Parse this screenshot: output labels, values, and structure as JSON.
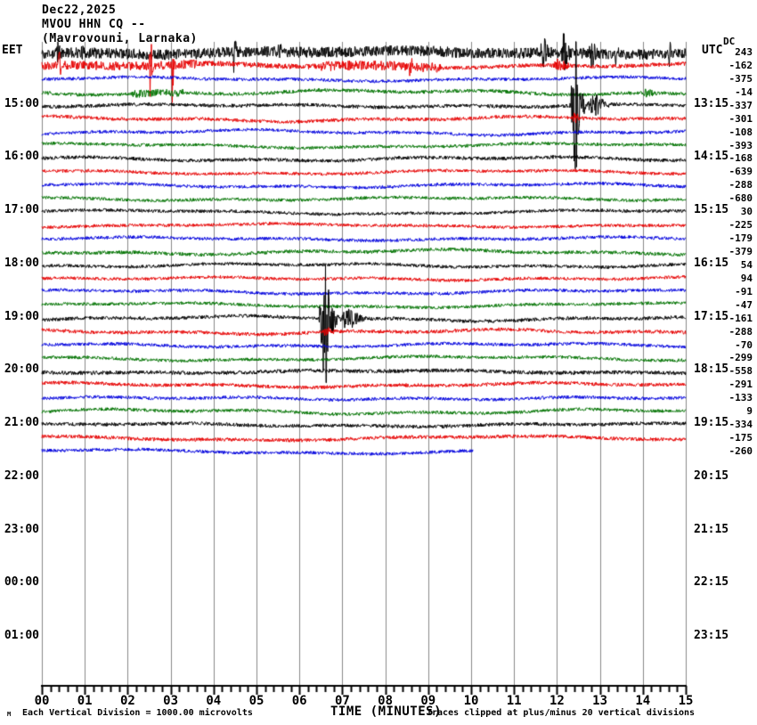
{
  "header": {
    "date": "Dec22,2025",
    "station": "MVOU HHN CQ --",
    "location": "(Mavrovouni, Larnaka)"
  },
  "axes": {
    "left_label": "EET",
    "right_label": "UTC",
    "dc_label": "DC",
    "x_title": "TIME (MINUTES)",
    "left_ticks": [
      "15:00",
      "16:00",
      "17:00",
      "18:00",
      "19:00",
      "20:00",
      "21:00",
      "22:00",
      "23:00",
      "00:00",
      "01:00"
    ],
    "right_ticks": [
      "13:15",
      "14:15",
      "15:15",
      "16:15",
      "17:15",
      "18:15",
      "19:15",
      "20:15",
      "21:15",
      "22:15",
      "23:15"
    ],
    "x_ticks": [
      "00",
      "01",
      "02",
      "03",
      "04",
      "05",
      "06",
      "07",
      "08",
      "09",
      "10",
      "11",
      "12",
      "13",
      "14",
      "15"
    ]
  },
  "footer": {
    "mark": "M",
    "left": "Each Vertical Division = 1000.00 microvolts",
    "right": "Traces clipped at plus/minus 20 vertical divisions"
  },
  "chart_data": {
    "type": "line",
    "subtype": "helicorder-seismogram",
    "x_range": [
      0,
      15
    ],
    "minutes_per_row": 15,
    "grid": "vertical-minute-lines",
    "grid_color": "#888888",
    "background": "#ffffff",
    "palette": {
      "black": "#000000",
      "red": "#e60000",
      "blue": "#0000dd",
      "green": "#007300"
    },
    "color_cycle": [
      "black",
      "red",
      "blue",
      "green"
    ],
    "first_row_start_eet": "14:00",
    "clip_divisions": 20,
    "microvolts_per_division": 1000.0,
    "rows": [
      {
        "c": "black",
        "dc": 243,
        "a": 6,
        "ev": [
          {
            "t": 0.35,
            "d": 0.1,
            "a": 14
          },
          {
            "t": 0.9,
            "d": 0.08,
            "a": 12
          },
          {
            "t": 4.45,
            "d": 0.1,
            "a": 26
          },
          {
            "t": 5.5,
            "d": 0.1,
            "a": 14
          },
          {
            "t": 11.6,
            "d": 0.3,
            "a": 16
          },
          {
            "t": 12.1,
            "d": 0.25,
            "a": 22
          },
          {
            "t": 12.75,
            "d": 0.2,
            "a": 14
          },
          {
            "t": 13.35,
            "d": 0.15,
            "a": 12
          },
          {
            "t": 14.6,
            "d": 0.1,
            "a": 12
          }
        ]
      },
      {
        "c": "red",
        "dc": -162,
        "a": 5,
        "amps": [
          [
            0,
            5
          ],
          [
            3.6,
            3
          ],
          [
            6.5,
            5.5
          ],
          [
            9.3,
            2.2
          ]
        ],
        "ev": [
          {
            "t": 0.38,
            "d": 0.07,
            "a": 50
          },
          {
            "t": 2.5,
            "d": 0.1,
            "a": 58
          },
          {
            "t": 3.02,
            "d": 0.08,
            "a": 46
          },
          {
            "t": 8.55,
            "d": 0.1,
            "a": 20
          },
          {
            "t": 11.9,
            "d": 0.5,
            "a": 6
          }
        ]
      },
      {
        "c": "blue",
        "dc": -375,
        "a": 1.8
      },
      {
        "c": "green",
        "dc": -14,
        "a": 2,
        "amps": [
          [
            0,
            2
          ],
          [
            2.1,
            4.5
          ],
          [
            3.3,
            2
          ]
        ],
        "ev": [
          {
            "t": 14.0,
            "d": 0.4,
            "a": 4
          }
        ]
      },
      {
        "c": "black",
        "dc": -337,
        "a": 2,
        "ev": [
          {
            "t": 12.3,
            "d": 0.4,
            "a": 70
          },
          {
            "t": 12.42,
            "d": 0.06,
            "a": 85
          },
          {
            "t": 12.7,
            "d": 0.6,
            "a": 14
          }
        ]
      },
      {
        "c": "red",
        "dc": -301,
        "a": 2,
        "ev": [
          {
            "t": 12.35,
            "d": 0.3,
            "a": 5
          }
        ]
      },
      {
        "c": "blue",
        "dc": -108,
        "a": 1.8
      },
      {
        "c": "green",
        "dc": -393,
        "a": 1.8
      },
      {
        "c": "black",
        "dc": -168,
        "a": 2
      },
      {
        "c": "red",
        "dc": -639,
        "a": 1.8
      },
      {
        "c": "blue",
        "dc": -288,
        "a": 1.8
      },
      {
        "c": "green",
        "dc": -680,
        "a": 1.8
      },
      {
        "c": "black",
        "dc": 30,
        "a": 1.8
      },
      {
        "c": "red",
        "dc": -225,
        "a": 1.8
      },
      {
        "c": "blue",
        "dc": -179,
        "a": 1.8
      },
      {
        "c": "green",
        "dc": -379,
        "a": 2
      },
      {
        "c": "black",
        "dc": 54,
        "a": 1.8
      },
      {
        "c": "red",
        "dc": 94,
        "a": 1.8
      },
      {
        "c": "blue",
        "dc": -91,
        "a": 1.8
      },
      {
        "c": "green",
        "dc": -47,
        "a": 1.8
      },
      {
        "c": "black",
        "dc": -161,
        "a": 2,
        "ev": [
          {
            "t": 6.45,
            "d": 0.5,
            "a": 58
          },
          {
            "t": 6.6,
            "d": 0.06,
            "a": 80
          },
          {
            "t": 6.95,
            "d": 0.7,
            "a": 12
          }
        ]
      },
      {
        "c": "red",
        "dc": -288,
        "a": 2,
        "ev": [
          {
            "t": 6.55,
            "d": 0.3,
            "a": 5
          }
        ]
      },
      {
        "c": "blue",
        "dc": -70,
        "a": 1.8
      },
      {
        "c": "green",
        "dc": -299,
        "a": 1.8
      },
      {
        "c": "black",
        "dc": -558,
        "a": 2.2
      },
      {
        "c": "red",
        "dc": -291,
        "a": 2
      },
      {
        "c": "blue",
        "dc": -133,
        "a": 1.8
      },
      {
        "c": "green",
        "dc": 9,
        "a": 1.8
      },
      {
        "c": "black",
        "dc": -334,
        "a": 2
      },
      {
        "c": "red",
        "dc": -175,
        "a": 2
      },
      {
        "c": "blue",
        "dc": -260,
        "a": 1.8,
        "end": 10.05
      }
    ]
  }
}
